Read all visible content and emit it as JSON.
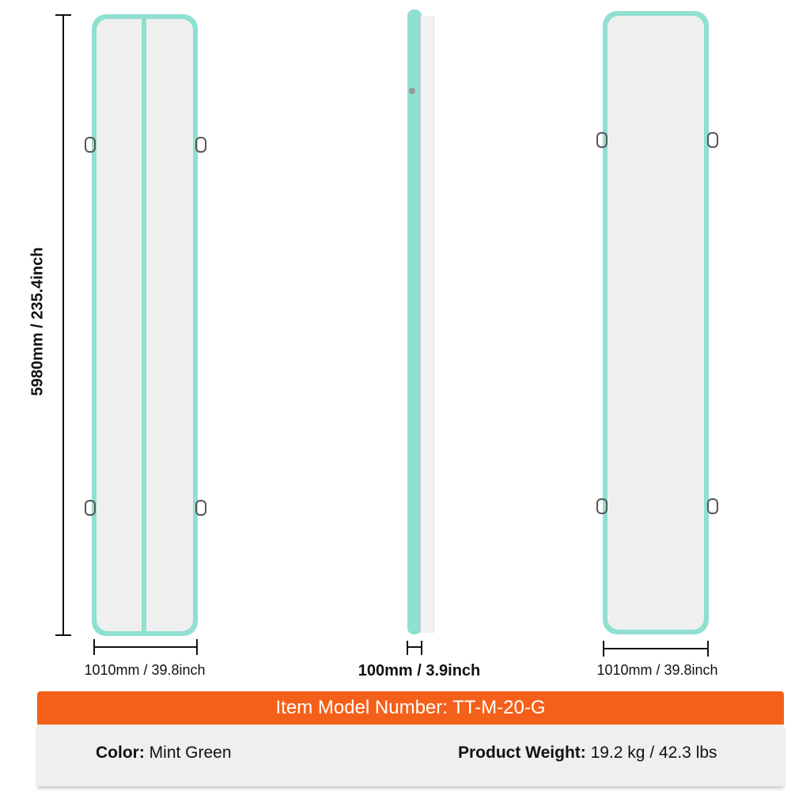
{
  "dimensions": {
    "length": "5980mm / 235.4inch",
    "width_left": "1010mm / 39.8inch",
    "thickness": "100mm / 3.9inch",
    "width_right": "1010mm / 39.8inch"
  },
  "banner": {
    "model": "Item Model Number: TT-M-20-G"
  },
  "specs": {
    "color_label": "Color:",
    "color_value": " Mint Green",
    "weight_label": "Product Weight:",
    "weight_value": " 19.2 kg / 42.3 lbs"
  },
  "colors": {
    "mint": "#8fe0d0",
    "orange": "#f4601a"
  }
}
